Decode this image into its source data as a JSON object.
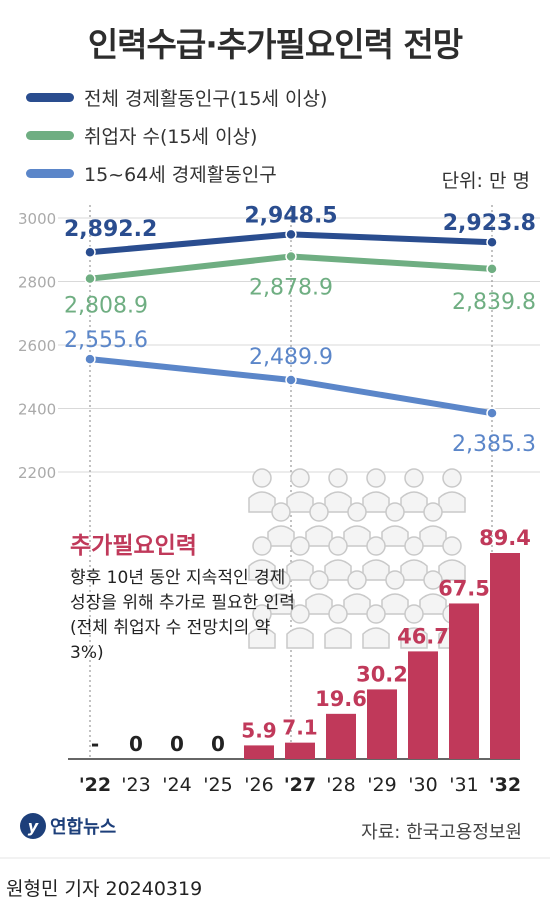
{
  "title": "인력수급·추가필요인력 전망",
  "unit": "단위: 만 명",
  "legend": [
    {
      "name": "전체 경제활동인구(15세 이상)",
      "color": "#2a4d8f"
    },
    {
      "name": "취업자 수(15세 이상)",
      "color": "#6fae82"
    },
    {
      "name": "15~64세 경제활동인구",
      "color": "#5b86c9"
    }
  ],
  "note": {
    "title": "추가필요인력",
    "body": "향후 10년 동안 지속적인 경제성장을 위해 추가로 필요한 인력(전체 취업자 수 전망치의 약 3%)"
  },
  "source": "자료: 한국고용정보원",
  "logo": "연합뉴스",
  "byline": "원형민 기자  20240319",
  "chart_data": [
    {
      "type": "line",
      "x": [
        "'22",
        "'27",
        "'32"
      ],
      "ylim": [
        2200,
        3000
      ],
      "yticks": [
        3000,
        2800,
        2600,
        2400,
        2200
      ],
      "series": [
        {
          "name": "전체 경제활동인구(15세 이상)",
          "values": [
            2892.2,
            2948.5,
            2923.8
          ],
          "labels": [
            "2,892.2",
            "2,948.5",
            "2,923.8"
          ]
        },
        {
          "name": "취업자 수(15세 이상)",
          "values": [
            2808.9,
            2878.9,
            2839.8
          ],
          "labels": [
            "2,808.9",
            "2,878.9",
            "2,839.8"
          ]
        },
        {
          "name": "15~64세 경제활동인구",
          "values": [
            2555.6,
            2489.9,
            2385.3
          ],
          "labels": [
            "2,555.6",
            "2,489.9",
            "2,385.3"
          ]
        }
      ]
    },
    {
      "type": "bar",
      "name": "추가필요인력",
      "categories": [
        "'22",
        "'23",
        "'24",
        "'25",
        "'26",
        "'27",
        "'28",
        "'29",
        "'30",
        "'31",
        "'32"
      ],
      "values": [
        0,
        0,
        0,
        0,
        5.9,
        7.1,
        19.6,
        30.2,
        46.7,
        67.5,
        89.4
      ],
      "labels": [
        "-",
        "0",
        "0",
        "0",
        "5.9",
        "7.1",
        "19.6",
        "30.2",
        "46.7",
        "67.5",
        "89.4"
      ],
      "bold_categories": [
        "'22",
        "'27",
        "'32"
      ],
      "color": "#c0395a"
    }
  ]
}
